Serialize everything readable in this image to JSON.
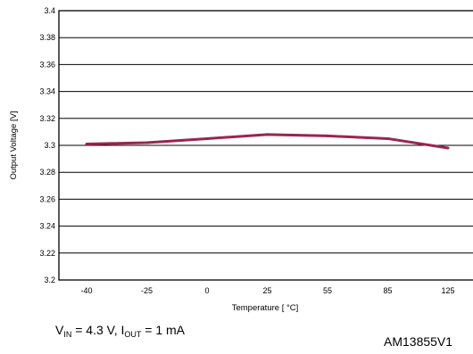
{
  "chart_data": {
    "type": "line",
    "categories": [
      "-40",
      "-25",
      "0",
      "25",
      "55",
      "85",
      "125"
    ],
    "yticks": [
      "3.2",
      "3.22",
      "3.24",
      "3.26",
      "3.28",
      "3.3",
      "3.32",
      "3.34",
      "3.36",
      "3.38",
      "3.4"
    ],
    "ylim": [
      3.2,
      3.4
    ],
    "series": [
      {
        "values": [
          3.301,
          3.302,
          3.305,
          3.308,
          3.307,
          3.305,
          3.298
        ]
      }
    ],
    "xlabel": "Temperature  [ °C]",
    "ylabel": "Output Voltage [V]",
    "grid": "horizontal",
    "line_color": "#9b2450"
  },
  "condition": {
    "vin_sym": "V",
    "vin_sub": "IN",
    "vin_val": " = 4.3 V, ",
    "iout_sym": "I",
    "iout_sub": "OUT",
    "iout_val": " = 1 mA"
  },
  "figure_id": "AM13855V1"
}
